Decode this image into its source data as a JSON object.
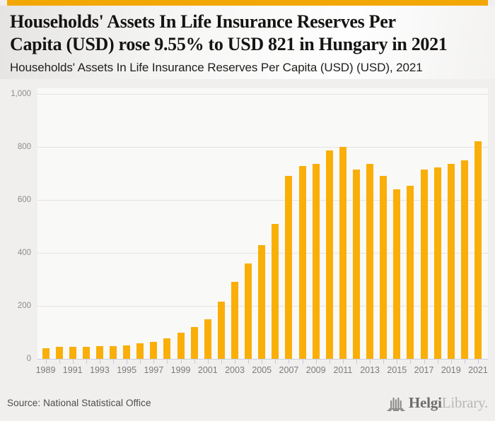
{
  "page": {
    "accent_color": "#F2A705",
    "bar_color": "#FAAE08"
  },
  "header": {
    "title_lines": [
      "Households' Assets In Life Insurance Reserves Per",
      "Capita (USD) rose 9.55% to USD 821 in Hungary in 2021"
    ],
    "subtitle": "Households' Assets In Life Insurance Reserves Per Capita (USD) (USD), 2021"
  },
  "chart_data": {
    "type": "bar",
    "title": "Households' Assets In Life Insurance Reserves Per Capita (USD) (USD), 2021",
    "xlabel": "",
    "ylabel": "",
    "unit": "USD",
    "categories": [
      1989,
      1990,
      1991,
      1992,
      1993,
      1994,
      1995,
      1996,
      1997,
      1998,
      1999,
      2000,
      2001,
      2002,
      2003,
      2004,
      2005,
      2006,
      2007,
      2008,
      2009,
      2010,
      2011,
      2012,
      2013,
      2014,
      2015,
      2016,
      2017,
      2018,
      2019,
      2020,
      2021
    ],
    "values": [
      40,
      45,
      46,
      45,
      48,
      47,
      50,
      59,
      64,
      77,
      98,
      119,
      149,
      215,
      290,
      360,
      428,
      508,
      690,
      727,
      737,
      787,
      800,
      715,
      735,
      691,
      641,
      652,
      715,
      722,
      735,
      749,
      821
    ],
    "highlight": {
      "year": 2021,
      "value": 821,
      "change_pct": "9.55%"
    },
    "ylim": [
      0,
      1000
    ],
    "yticks": [
      0,
      200,
      400,
      600,
      800,
      1000
    ],
    "ytick_labels": [
      "0",
      "200",
      "400",
      "600",
      "800",
      "1,000"
    ],
    "xtick_label_years": [
      1989,
      1991,
      1993,
      1995,
      1997,
      1999,
      2001,
      2003,
      2005,
      2007,
      2009,
      2011,
      2013,
      2015,
      2017,
      2019,
      2021
    ],
    "grid": true,
    "legend": null,
    "bar_color": "#FAAE08"
  },
  "footer": {
    "source": "Source: National Statistical Office",
    "logo": {
      "brand_bold": "Helgi",
      "brand_light": "Library."
    }
  }
}
